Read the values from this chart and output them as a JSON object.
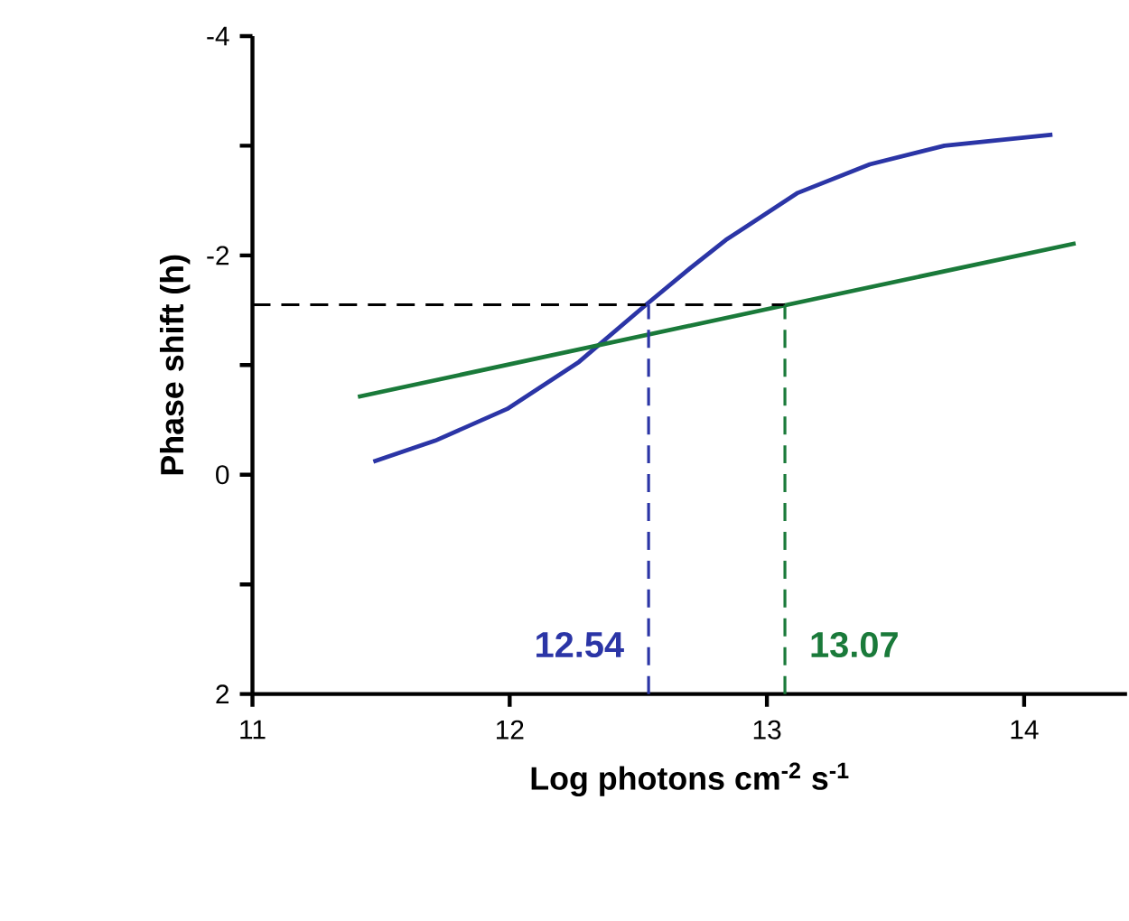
{
  "chart_data": {
    "type": "line",
    "xlabel": "Log photons cm$^{-2}$ s$^{-1}$",
    "ylabel": "Phase shift (h)",
    "xlim": [
      11,
      14.4
    ],
    "ylim": [
      2,
      -4
    ],
    "xticks": [
      11,
      12,
      13,
      14
    ],
    "yticks": [
      2,
      {
        "value": 1,
        "label": null
      },
      0,
      {
        "value": -1,
        "label": null
      },
      -2,
      {
        "value": -3,
        "label": null
      },
      -4
    ],
    "grid": false,
    "marker": "none",
    "series": [
      {
        "color": "#2b35a6",
        "x": [
          11.47,
          11.71,
          11.99,
          12.27,
          12.53,
          12.7,
          12.84,
          13.12,
          13.4,
          13.69,
          14.11
        ],
        "values": [
          -0.12,
          -0.31,
          -0.6,
          -1.03,
          -1.55,
          -1.88,
          -2.14,
          -2.57,
          -2.83,
          -3.0,
          -3.1
        ]
      },
      {
        "color": "#1a7a3a",
        "x": [
          11.41,
          13.08,
          14.2
        ],
        "values": [
          -0.71,
          -1.55,
          -2.11
        ]
      },
      {
        "color": "#000000",
        "line_style": "dashed",
        "x": [
          11,
          13.07
        ],
        "values": [
          -1.55,
          -1.55
        ]
      },
      {
        "color": "#2b35a6",
        "line_style": "dashed",
        "x": [
          12.54,
          12.54
        ],
        "values": [
          2,
          -1.55
        ]
      },
      {
        "color": "#1a7a3a",
        "line_style": "dashed",
        "x": [
          13.07,
          13.07
        ],
        "values": [
          2,
          -1.55
        ]
      }
    ],
    "annotations": [
      {
        "text": "12.54",
        "x": 12.54,
        "y": 1.55
      },
      {
        "text": "13.07",
        "x": 13.07,
        "y": 1.55
      }
    ]
  }
}
